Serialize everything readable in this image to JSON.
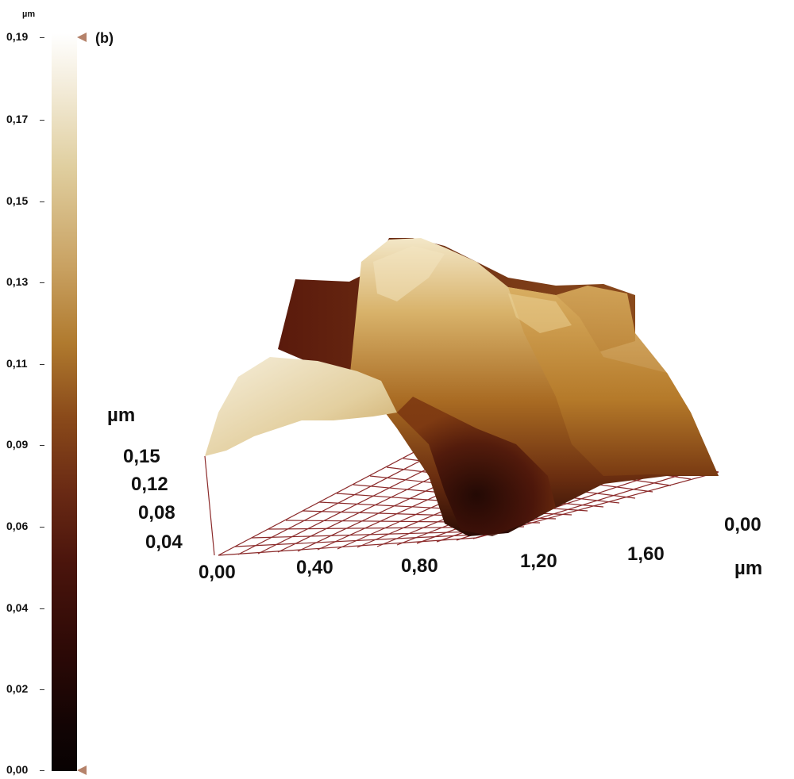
{
  "panel_label": "(b)",
  "colorbar": {
    "unit": "µm",
    "ticks": [
      "0,19",
      "0,17",
      "0,15",
      "0,13",
      "0,11",
      "0,09",
      "0,06",
      "0,04",
      "0,02",
      "0,00"
    ]
  },
  "plot3d": {
    "z_unit": "µm",
    "z_ticks": [
      "0,15",
      "0,12",
      "0,08",
      "0,04"
    ],
    "x_ticks": [
      "0,00",
      "0,40",
      "0,80",
      "1,20",
      "1,60"
    ],
    "y_tick": "0,00",
    "xy_unit": "µm"
  }
}
